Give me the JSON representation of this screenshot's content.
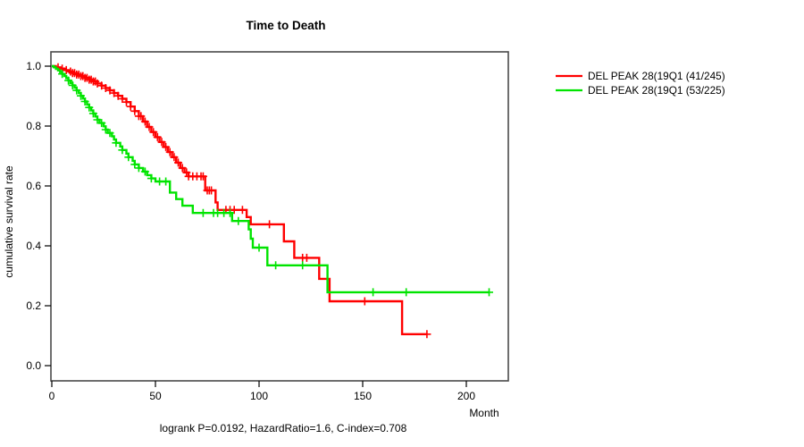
{
  "title": "Time to Death",
  "footer": "logrank P=0.0192, HazardRatio=1.6, C-index=0.708",
  "axes": {
    "x_label": "Month",
    "y_label": "cumulative survival rate",
    "x_ticks": [
      "0",
      "50",
      "100",
      "150",
      "200"
    ],
    "y_ticks": [
      "0.0",
      "0.2",
      "0.4",
      "0.6",
      "0.8",
      "1.0"
    ]
  },
  "legend": [
    {
      "label": "DEL PEAK 28(19Q1 (41/245)",
      "color": "#ff0000"
    },
    {
      "label": "DEL PEAK 28(19Q1 (53/225)",
      "color": "#00e400"
    }
  ],
  "chart_data": {
    "type": "line",
    "subtype": "kaplan-meier-step",
    "title": "Time to Death",
    "xlabel": "Month",
    "ylabel": "cumulative survival rate",
    "xlim": [
      0,
      220
    ],
    "ylim": [
      0,
      1.0
    ],
    "x_tick_values": [
      0,
      50,
      100,
      150,
      200
    ],
    "y_tick_values": [
      0,
      0.2,
      0.4,
      0.6,
      0.8,
      1.0
    ],
    "grid": false,
    "legend_position": "right-outside",
    "annotation": "logrank P=0.0192, HazardRatio=1.6, C-index=0.708",
    "series": [
      {
        "name": "DEL PEAK 28(19Q1 (41/245)",
        "color": "#ff0000",
        "events_total": "41/245",
        "end_time": 181,
        "steps": [
          [
            0,
            1.0
          ],
          [
            2,
            0.996
          ],
          [
            4,
            0.992
          ],
          [
            6,
            0.987
          ],
          [
            8,
            0.982
          ],
          [
            10,
            0.977
          ],
          [
            12,
            0.972
          ],
          [
            14,
            0.967
          ],
          [
            16,
            0.961
          ],
          [
            18,
            0.955
          ],
          [
            20,
            0.949
          ],
          [
            22,
            0.942
          ],
          [
            24,
            0.935
          ],
          [
            26,
            0.927
          ],
          [
            28,
            0.919
          ],
          [
            30,
            0.91
          ],
          [
            32,
            0.901
          ],
          [
            34,
            0.891
          ],
          [
            36,
            0.88
          ],
          [
            38,
            0.865
          ],
          [
            40,
            0.85
          ],
          [
            42,
            0.833
          ],
          [
            44,
            0.815
          ],
          [
            46,
            0.797
          ],
          [
            48,
            0.78
          ],
          [
            50,
            0.763
          ],
          [
            52,
            0.747
          ],
          [
            54,
            0.73
          ],
          [
            56,
            0.713
          ],
          [
            58,
            0.696
          ],
          [
            60,
            0.678
          ],
          [
            62,
            0.66
          ],
          [
            64,
            0.645
          ],
          [
            66,
            0.632
          ],
          [
            74,
            0.585
          ],
          [
            79,
            0.545
          ],
          [
            80,
            0.52
          ],
          [
            94,
            0.496
          ],
          [
            96,
            0.472
          ],
          [
            112,
            0.415
          ],
          [
            117,
            0.36
          ],
          [
            129,
            0.29
          ],
          [
            134,
            0.215
          ],
          [
            169,
            0.105
          ]
        ],
        "censor_times": [
          3,
          5,
          7,
          9,
          10,
          11,
          12,
          13,
          14,
          15,
          16,
          17,
          18,
          19,
          20,
          21,
          22,
          24,
          26,
          28,
          30,
          32,
          34,
          36,
          38,
          40,
          42,
          43,
          45,
          47,
          49,
          51,
          53,
          55,
          57,
          59,
          61,
          63,
          65,
          66,
          68,
          70,
          72,
          73,
          75,
          76,
          77,
          84,
          86,
          88,
          92,
          105,
          121,
          123,
          151,
          181
        ]
      },
      {
        "name": "DEL PEAK 28(19Q1 (53/225)",
        "color": "#00e400",
        "events_total": "53/225",
        "end_time": 211,
        "steps": [
          [
            0,
            1.0
          ],
          [
            1,
            0.996
          ],
          [
            2,
            0.991
          ],
          [
            3,
            0.986
          ],
          [
            4,
            0.98
          ],
          [
            5,
            0.974
          ],
          [
            6,
            0.967
          ],
          [
            7,
            0.96
          ],
          [
            8,
            0.952
          ],
          [
            9,
            0.944
          ],
          [
            10,
            0.936
          ],
          [
            11,
            0.928
          ],
          [
            12,
            0.919
          ],
          [
            13,
            0.91
          ],
          [
            14,
            0.901
          ],
          [
            15,
            0.892
          ],
          [
            16,
            0.882
          ],
          [
            17,
            0.872
          ],
          [
            18,
            0.862
          ],
          [
            19,
            0.852
          ],
          [
            20,
            0.842
          ],
          [
            21,
            0.832
          ],
          [
            22,
            0.821
          ],
          [
            23,
            0.81
          ],
          [
            25,
            0.799
          ],
          [
            26,
            0.788
          ],
          [
            27,
            0.777
          ],
          [
            29,
            0.766
          ],
          [
            30,
            0.755
          ],
          [
            31,
            0.744
          ],
          [
            33,
            0.732
          ],
          [
            34,
            0.72
          ],
          [
            36,
            0.708
          ],
          [
            37,
            0.696
          ],
          [
            39,
            0.684
          ],
          [
            40,
            0.672
          ],
          [
            42,
            0.66
          ],
          [
            44,
            0.648
          ],
          [
            46,
            0.636
          ],
          [
            48,
            0.625
          ],
          [
            50,
            0.615
          ],
          [
            57,
            0.578
          ],
          [
            60,
            0.556
          ],
          [
            63,
            0.534
          ],
          [
            68,
            0.51
          ],
          [
            87,
            0.483
          ],
          [
            95,
            0.455
          ],
          [
            96,
            0.424
          ],
          [
            97,
            0.394
          ],
          [
            104,
            0.335
          ],
          [
            133,
            0.245
          ]
        ],
        "censor_times": [
          5,
          8,
          10,
          12,
          14,
          16,
          18,
          20,
          22,
          24,
          26,
          28,
          31,
          34,
          37,
          40,
          42,
          45,
          48,
          52,
          55,
          73,
          78,
          80,
          83,
          86,
          90,
          100,
          108,
          121,
          155,
          171,
          211
        ]
      }
    ]
  }
}
